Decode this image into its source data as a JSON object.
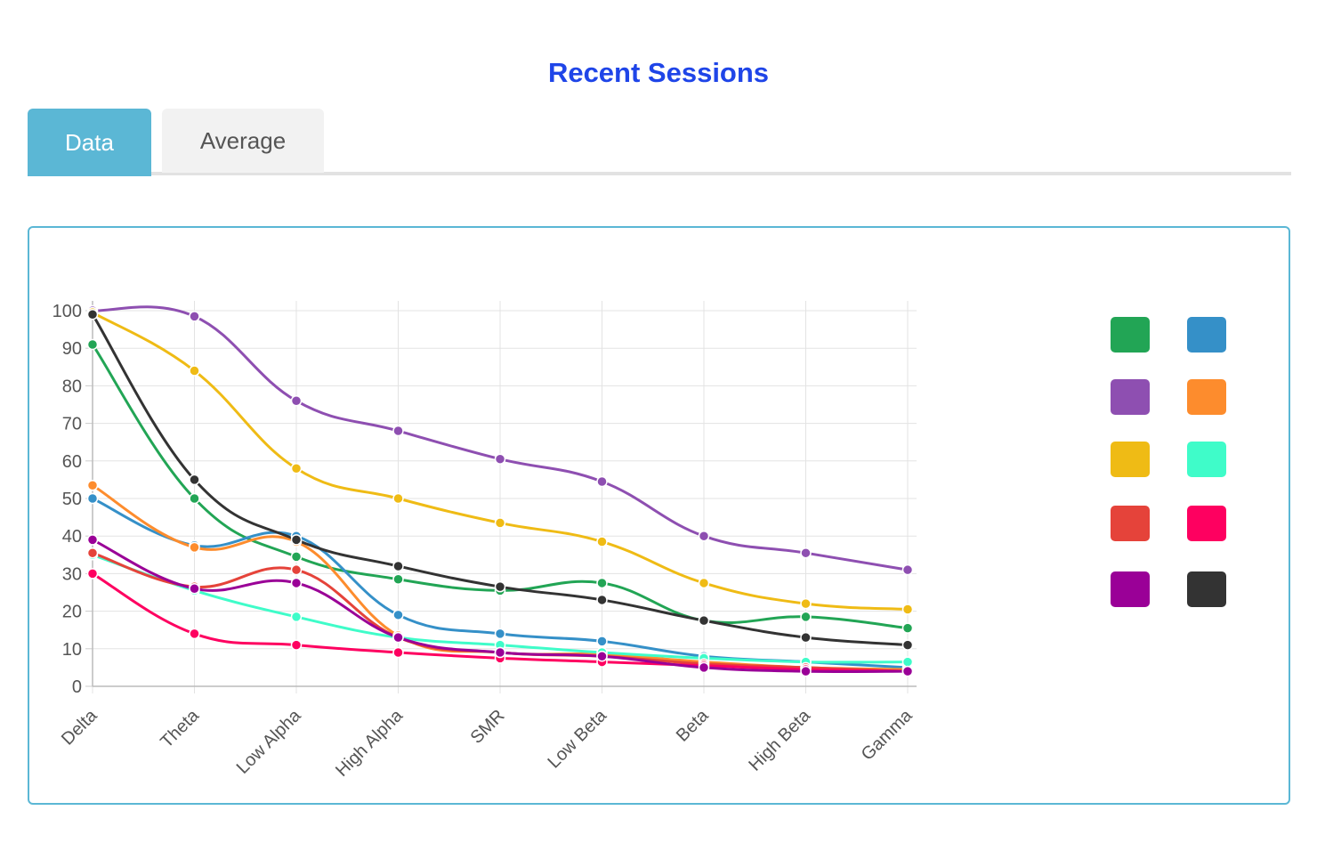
{
  "header": {
    "title": "Recent Sessions"
  },
  "tabs": [
    {
      "label": "Data",
      "active": true
    },
    {
      "label": "Average",
      "active": false
    }
  ],
  "colors": {
    "title": "#1f45e8",
    "tab_active": "#5bb7d5",
    "panel_border": "#5bb7d5"
  },
  "chart_data": {
    "type": "line",
    "title": "",
    "xlabel": "",
    "ylabel": "",
    "ylim": [
      0,
      100
    ],
    "y_ticks": [
      0,
      10,
      20,
      30,
      40,
      50,
      60,
      70,
      80,
      90,
      100
    ],
    "grid": true,
    "legend_position": "right",
    "categories": [
      "Delta",
      "Theta",
      "Low Alpha",
      "High Alpha",
      "SMR",
      "Low Beta",
      "Beta",
      "High Beta",
      "Gamma"
    ],
    "series": [
      {
        "color": "#22a555",
        "values": [
          91,
          50,
          34.5,
          28.5,
          25.5,
          27.5,
          17.5,
          18.5,
          15.5
        ]
      },
      {
        "color": "#3590c8",
        "values": [
          50,
          37.5,
          40,
          19,
          14,
          12,
          8,
          6.5,
          5
        ]
      },
      {
        "color": "#8e4fb1",
        "values": [
          100,
          98.5,
          76,
          68,
          60.5,
          54.5,
          40,
          35.5,
          31
        ]
      },
      {
        "color": "#fd8c2d",
        "values": [
          53.5,
          37,
          38.5,
          13.5,
          9,
          8.5,
          6.5,
          5,
          4.5
        ]
      },
      {
        "color": "#efbb15",
        "values": [
          99.5,
          84,
          58,
          50,
          43.5,
          38.5,
          27.5,
          22,
          20.5
        ]
      },
      {
        "color": "#3ffcc9",
        "values": [
          35,
          25.5,
          18.5,
          13,
          11,
          9,
          7.5,
          6.5,
          6.5
        ]
      },
      {
        "color": "#e5433a",
        "values": [
          35.5,
          26.5,
          31,
          13,
          9,
          8,
          6,
          5,
          4
        ]
      },
      {
        "color": "#fe0060",
        "values": [
          30,
          14,
          11,
          9,
          7.5,
          6.5,
          5.5,
          4.5,
          4
        ]
      },
      {
        "color": "#9a0097",
        "values": [
          39,
          26,
          27.5,
          13,
          9,
          8,
          5,
          4,
          4
        ]
      },
      {
        "color": "#333333",
        "values": [
          99,
          55,
          39,
          32,
          26.5,
          23,
          17.5,
          13,
          11
        ]
      }
    ]
  }
}
